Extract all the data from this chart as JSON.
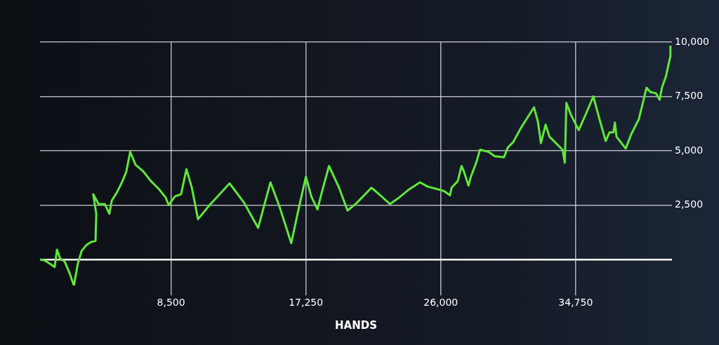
{
  "chart_data": {
    "type": "line",
    "xlabel": "HANDS",
    "x": [
      0,
      300,
      650,
      950,
      1100,
      1300,
      1600,
      1900,
      2200,
      2450,
      2700,
      3000,
      3300,
      3600,
      3650,
      3450,
      3800,
      4200,
      4500,
      4650,
      5000,
      5350,
      5600,
      5850,
      6200,
      6700,
      7200,
      7700,
      8150,
      8350,
      8750,
      9150,
      9500,
      9850,
      10250,
      11000,
      12300,
      13250,
      14150,
      14950,
      15550,
      16300,
      16800,
      17250,
      17600,
      18000,
      18250,
      18750,
      19400,
      19950,
      20550,
      21500,
      22000,
      22700,
      23300,
      23900,
      24650,
      25150,
      25700,
      26200,
      26600,
      26700,
      27100,
      27350,
      27500,
      27800,
      27950,
      28300,
      28550,
      29100,
      29500,
      30100,
      30350,
      30700,
      31200,
      32050,
      32300,
      32500,
      32800,
      33050,
      33900,
      34050,
      34150,
      34450,
      34950,
      35450,
      35900,
      36300,
      36700,
      36950,
      37200,
      37300,
      37400,
      38000,
      38350,
      38850,
      39350,
      39600,
      39950,
      40200,
      40350,
      40600,
      40900,
      40900
    ],
    "series": [
      {
        "color": "#5fe83a",
        "values": [
          0,
          -50,
          -200,
          -350,
          450,
          50,
          -100,
          -600,
          -1200,
          -200,
          400,
          650,
          800,
          850,
          2100,
          3000,
          2550,
          2550,
          2100,
          2700,
          3100,
          3600,
          4050,
          4950,
          4350,
          4050,
          3600,
          3250,
          2850,
          2500,
          2900,
          3000,
          4150,
          3300,
          1850,
          2500,
          3500,
          2600,
          1450,
          3550,
          2400,
          750,
          2400,
          3800,
          2900,
          2300,
          3000,
          4300,
          3300,
          2250,
          2600,
          3300,
          3000,
          2550,
          2850,
          3200,
          3550,
          3350,
          3250,
          3150,
          2950,
          3300,
          3600,
          4300,
          4050,
          3400,
          3800,
          4450,
          5050,
          4950,
          4750,
          4700,
          5150,
          5400,
          6050,
          7000,
          6350,
          5350,
          6200,
          5650,
          5050,
          4450,
          7200,
          6650,
          5950,
          6750,
          7500,
          6450,
          5450,
          5850,
          5850,
          6300,
          5650,
          5100,
          5750,
          6450,
          7900,
          7700,
          7650,
          7350,
          7900,
          8400,
          9350,
          9800
        ]
      }
    ],
    "xlim": [
      0,
      41000
    ],
    "ylim": [
      -1200,
      10000
    ],
    "xticks": [
      {
        "value": 8500,
        "label": "8,500"
      },
      {
        "value": 17250,
        "label": "17,250"
      },
      {
        "value": 26000,
        "label": "26,000"
      },
      {
        "value": 34750,
        "label": "34,750"
      }
    ],
    "yticks": [
      {
        "value": 0,
        "label": null
      },
      {
        "value": 2500,
        "label": "2,500"
      },
      {
        "value": 5000,
        "label": "5,000"
      },
      {
        "value": 7500,
        "label": "7,500"
      },
      {
        "value": 10000,
        "label": "10,000"
      }
    ],
    "grid": true,
    "legend": false,
    "marker": "none",
    "line_style": "solid"
  }
}
